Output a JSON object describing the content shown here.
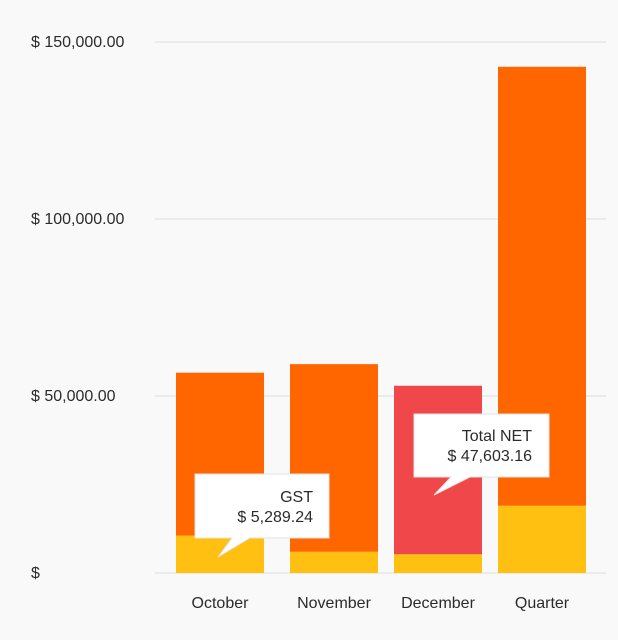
{
  "chart_data": {
    "type": "bar",
    "stacked": true,
    "categories": [
      "October",
      "November",
      "December",
      "Quarter"
    ],
    "series": [
      {
        "name": "GST",
        "values": [
          10579,
          6000,
          5289.24,
          19000
        ],
        "color": "#ffc012"
      },
      {
        "name": "Total NET",
        "values": [
          46000,
          53000,
          47603.16,
          124000
        ],
        "color": "#ff6600"
      }
    ],
    "highlight": {
      "category_index": 2,
      "series_index": 1,
      "color": "#f0474a"
    },
    "ylim": [
      0,
      150000
    ],
    "yticks": [
      0,
      50000,
      100000,
      150000
    ],
    "ytick_labels": [
      "$",
      "$ 50,000.00",
      "$ 100,000.00",
      "$ 150,000.00"
    ],
    "grid": true,
    "tooltips": [
      {
        "title": "GST",
        "value": "$ 5,289.24"
      },
      {
        "title": "Total NET",
        "value": "$ 47,603.16"
      }
    ]
  }
}
